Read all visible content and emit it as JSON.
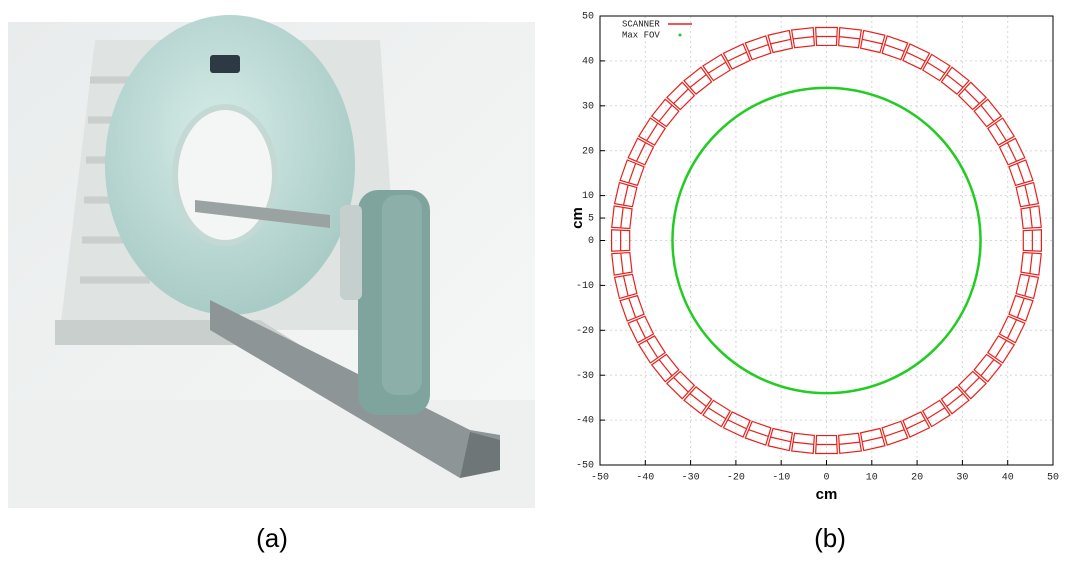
{
  "photo_caption": "(a)",
  "chart_caption": "(b)",
  "chart_data": {
    "type": "ring-geometry",
    "xlabel": "cm",
    "ylabel": "cm",
    "xlim": [
      -50,
      50
    ],
    "ylim": [
      -50,
      50
    ],
    "xticks": [
      -50,
      -40,
      -30,
      -20,
      -10,
      0,
      10,
      20,
      30,
      40,
      50
    ],
    "yticks": [
      -50,
      -40,
      -30,
      -20,
      -10,
      0,
      5,
      10,
      20,
      30,
      40,
      50
    ],
    "grid": true,
    "legend": "upper left",
    "series": [
      {
        "name": "SCANNER",
        "color": "#e8201c",
        "inner_radius": 43.5,
        "outer_radius": 47.5,
        "blocks": 56
      },
      {
        "name": "Max FOV",
        "color": "#22cc22",
        "radius": 34
      }
    ]
  }
}
